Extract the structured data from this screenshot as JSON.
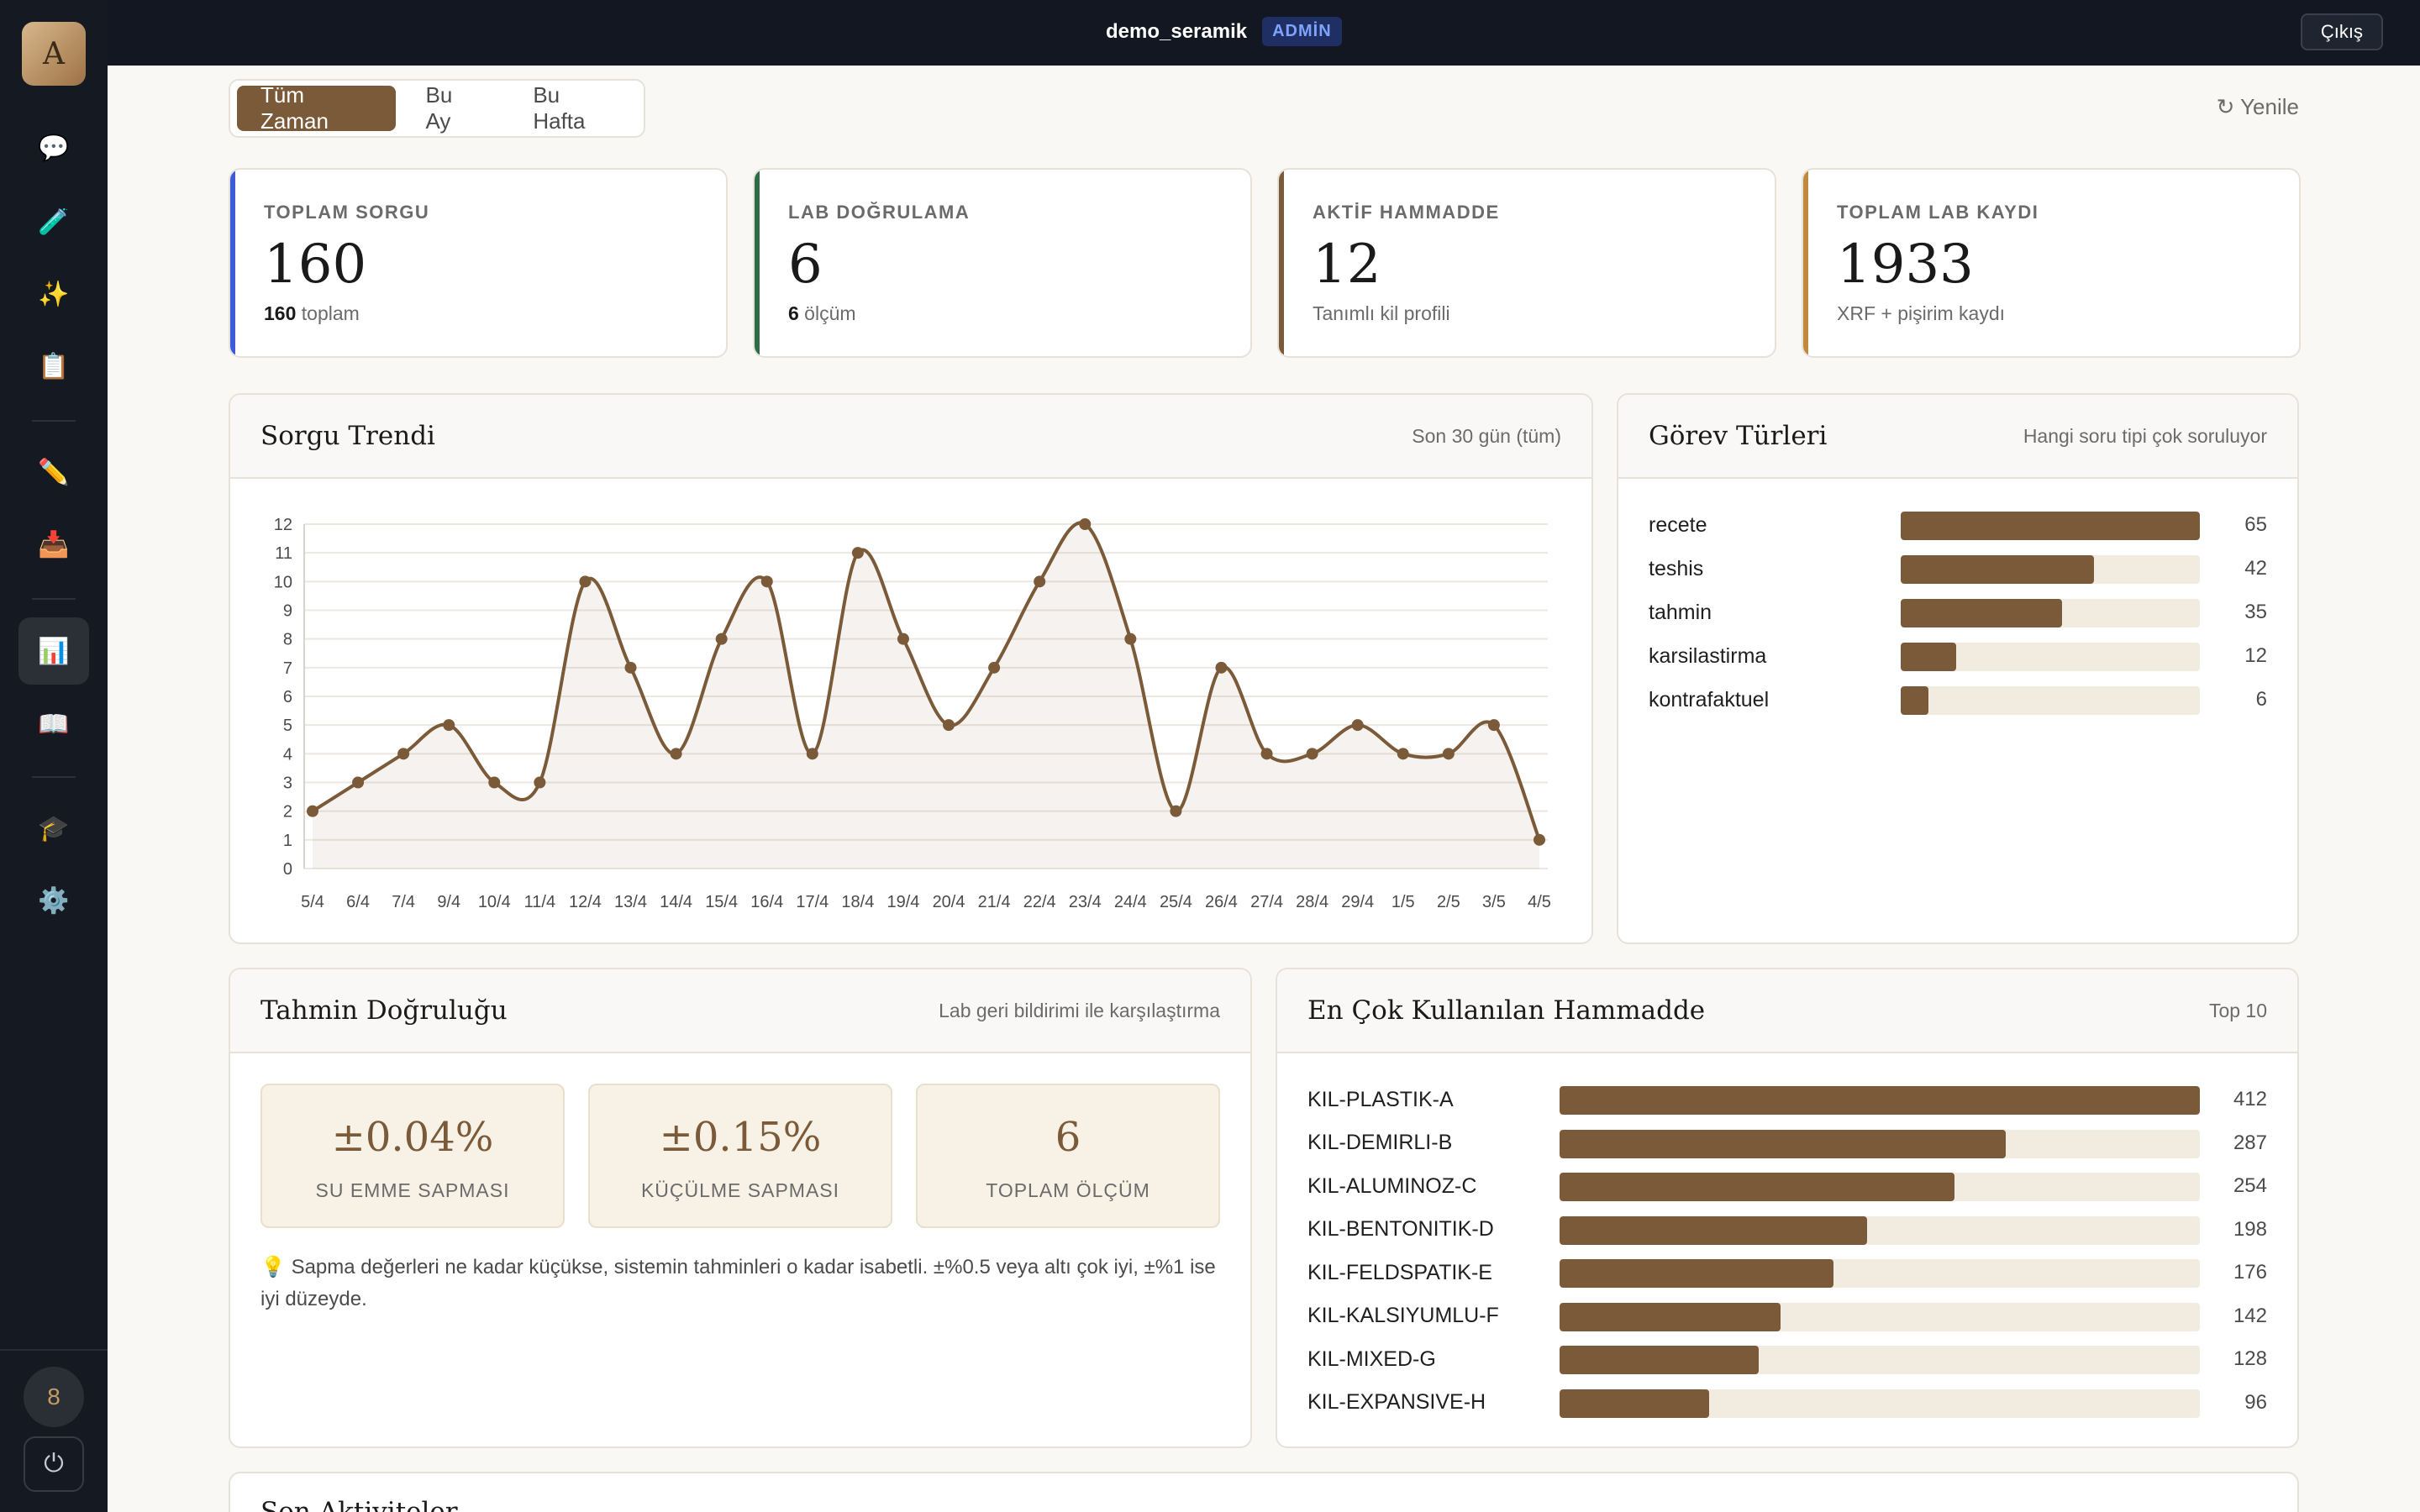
{
  "sidebar": {
    "logo": "A",
    "items": [
      {
        "icon": "chat-icon",
        "glyph": "💬"
      },
      {
        "icon": "test-tube-icon",
        "glyph": "🧪"
      },
      {
        "icon": "sparkles-icon",
        "glyph": "✨"
      },
      {
        "icon": "clipboard-icon",
        "glyph": "📋"
      },
      {
        "icon": "pencil-icon",
        "glyph": "✏️"
      },
      {
        "icon": "inbox-icon",
        "glyph": "📥"
      },
      {
        "icon": "chart-icon",
        "glyph": "📊"
      },
      {
        "icon": "book-icon",
        "glyph": "📖"
      },
      {
        "icon": "graduation-cap-icon",
        "glyph": "🎓"
      },
      {
        "icon": "gear-icon",
        "glyph": "⚙️"
      }
    ],
    "user_badge": "8",
    "power_glyph": "⏻"
  },
  "topbar": {
    "tenant": "demo_seramik",
    "role_badge": "ADMİN",
    "logout_label": "Çıkış"
  },
  "filters": {
    "options": [
      "Tüm Zaman",
      "Bu Ay",
      "Bu Hafta"
    ],
    "selected": "Tüm Zaman",
    "refresh_label": "↻ Yenile"
  },
  "stats": [
    {
      "label": "TOPLAM SORGU",
      "value": "160",
      "sub_bold": "160",
      "sub": " toplam",
      "color": "#3d5bd9"
    },
    {
      "label": "LAB DOĞRULAMA",
      "value": "6",
      "sub_bold": "6",
      "sub": " ölçüm",
      "color": "#2f6b45"
    },
    {
      "label": "AKTİF HAMMADDE",
      "value": "12",
      "sub_bold": "",
      "sub": "Tanımlı kil profili",
      "color": "#7a5a38"
    },
    {
      "label": "TOPLAM LAB KAYDI",
      "value": "1933",
      "sub_bold": "",
      "sub": "XRF + pişirim kaydı",
      "color": "#c08a3e"
    }
  ],
  "trend": {
    "title": "Sorgu Trendi",
    "subtitle": "Son 30 gün (tüm)"
  },
  "chart_data": {
    "type": "area",
    "x": [
      "5/4",
      "6/4",
      "7/4",
      "9/4",
      "10/4",
      "11/4",
      "12/4",
      "13/4",
      "14/4",
      "15/4",
      "16/4",
      "17/4",
      "18/4",
      "19/4",
      "20/4",
      "21/4",
      "22/4",
      "23/4",
      "24/4",
      "25/4",
      "26/4",
      "27/4",
      "28/4",
      "29/4",
      "1/5",
      "2/5",
      "3/5",
      "4/5"
    ],
    "values": [
      2,
      3,
      4,
      5,
      3,
      3,
      10,
      7,
      4,
      8,
      10,
      4,
      11,
      8,
      5,
      7,
      10,
      12,
      8,
      2,
      7,
      4,
      4,
      5,
      4,
      4,
      5,
      1
    ],
    "ylim": [
      0,
      12
    ],
    "yticks": [
      0,
      1,
      2,
      3,
      4,
      5,
      6,
      7,
      8,
      9,
      10,
      11,
      12
    ],
    "grid": true,
    "color": "#7a5a38"
  },
  "task_types": {
    "title": "Görev Türleri",
    "subtitle": "Hangi soru tipi çok soruluyor",
    "max": 65,
    "items": [
      {
        "label": "recete",
        "value": 65
      },
      {
        "label": "teshis",
        "value": 42
      },
      {
        "label": "tahmin",
        "value": 35
      },
      {
        "label": "karsilastirma",
        "value": 12
      },
      {
        "label": "kontrafaktuel",
        "value": 6
      }
    ]
  },
  "accuracy": {
    "title": "Tahmin Doğruluğu",
    "subtitle": "Lab geri bildirimi ile karşılaştırma",
    "tiles": [
      {
        "value": "±0.04%",
        "label": "SU EMME SAPMASI"
      },
      {
        "value": "±0.15%",
        "label": "KÜÇÜLME SAPMASI"
      },
      {
        "value": "6",
        "label": "TOPLAM ÖLÇÜM"
      }
    ],
    "note_icon": "💡",
    "note": "Sapma değerleri ne kadar küçükse, sistemin tahminleri o kadar isabetli. ±%0.5 veya altı çok iyi, ±%1 ise iyi düzeyde."
  },
  "materials": {
    "title": "En Çok Kullanılan Hammadde",
    "subtitle": "Top 10",
    "max": 412,
    "items": [
      {
        "label": "KIL-PLASTIK-A",
        "value": 412
      },
      {
        "label": "KIL-DEMIRLI-B",
        "value": 287
      },
      {
        "label": "KIL-ALUMINOZ-C",
        "value": 254
      },
      {
        "label": "KIL-BENTONITIK-D",
        "value": 198
      },
      {
        "label": "KIL-FELDSPATIK-E",
        "value": 176
      },
      {
        "label": "KIL-KALSIYUMLU-F",
        "value": 142
      },
      {
        "label": "KIL-MIXED-G",
        "value": 128
      },
      {
        "label": "KIL-EXPANSIVE-H",
        "value": 96
      }
    ]
  },
  "activity": {
    "title": "Son Aktiviteler"
  }
}
